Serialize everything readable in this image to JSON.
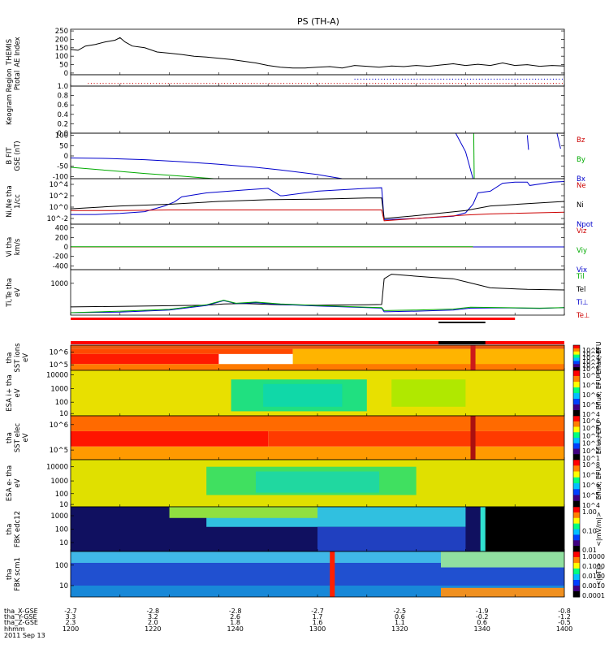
{
  "title": "PS (TH-A)",
  "footer": {
    "row_labels": [
      "tha_X-GSE",
      "tha_Y-GSE",
      "tha_Z-GSE",
      "hhmm",
      "2011 Sep 13"
    ],
    "columns": [
      [
        "-2.7",
        "3.3",
        "2.3",
        "1200"
      ],
      [
        "-2.8",
        "3.2",
        "2.0",
        "1220"
      ],
      [
        "-2.8",
        "2.6",
        "1.8",
        "1240"
      ],
      [
        "-2.7",
        "1.7",
        "1.6",
        "1300"
      ],
      [
        "-2.5",
        "0.6",
        "1.1",
        "1320"
      ],
      [
        "-1.9",
        "-0.2",
        "0.6",
        "1340"
      ],
      [
        "-0.8",
        "-1.2",
        "-0.5",
        "1400"
      ]
    ]
  },
  "chart_data": [
    {
      "type": "line",
      "id": "ae",
      "ylabel": [
        "THEMIS",
        "AE Index"
      ],
      "yticks": [
        "250",
        "200",
        "150",
        "100",
        "50",
        "0"
      ],
      "ylim": [
        -10,
        260
      ],
      "series": [
        {
          "color": "#000000",
          "x": [
            1200,
            1203,
            1206,
            1210,
            1214,
            1218,
            1220,
            1222,
            1225,
            1230,
            1235,
            1240,
            1245,
            1250,
            1255,
            1260,
            1265,
            1270,
            1275,
            1280,
            1285,
            1290,
            1295,
            1300,
            1305,
            1310,
            1315,
            1320,
            1325,
            1330,
            1335,
            1340,
            1345,
            1350,
            1355,
            1360,
            1365,
            1370,
            1375,
            1380,
            1385,
            1390,
            1395,
            1400
          ],
          "y": [
            140,
            135,
            160,
            170,
            185,
            195,
            210,
            185,
            160,
            150,
            125,
            118,
            110,
            100,
            95,
            88,
            80,
            70,
            60,
            45,
            35,
            30,
            30,
            35,
            38,
            30,
            45,
            40,
            35,
            42,
            38,
            45,
            40,
            48,
            55,
            45,
            52,
            45,
            60,
            45,
            50,
            40,
            45,
            42
          ]
        }
      ]
    },
    {
      "type": "scatter",
      "id": "region",
      "ylabel": [
        "Region",
        "Ptotal"
      ],
      "marks": [
        {
          "x0": 1207,
          "x1": 1400,
          "y": 0.72,
          "color": "#cc0000",
          "step": 1.2
        },
        {
          "x0": 1315,
          "x1": 1400,
          "y": 0.35,
          "color": "#0000cc",
          "step": 1.2
        }
      ]
    },
    {
      "type": "line",
      "id": "keogram",
      "ylabel": [
        "Keogram"
      ],
      "yticks": [
        "1.0",
        "0.8",
        "0.6",
        "0.4",
        "0.2",
        "0.0"
      ],
      "ylim": [
        0,
        1
      ]
    },
    {
      "type": "line",
      "id": "bfit",
      "ylabel": [
        "B FIT",
        "GSE (nT)"
      ],
      "yticks": [
        "100",
        "50",
        "0",
        "-50",
        "-100"
      ],
      "ylim": [
        -110,
        110
      ],
      "legend": [
        {
          "name": "Bz",
          "color": "#cc0000"
        },
        {
          "name": "By",
          "color": "#00aa00"
        },
        {
          "name": "Bx",
          "color": "#0000cc"
        }
      ],
      "series": [
        {
          "name": "Bx",
          "color": "#0000cc",
          "x": [
            1200,
            1215,
            1230,
            1245,
            1260,
            1275,
            1285,
            1300,
            1305,
            1310
          ],
          "y": [
            -10,
            -12,
            -18,
            -28,
            -40,
            -55,
            -68,
            -90,
            -100,
            -110
          ]
        },
        {
          "name": "By",
          "color": "#00aa00",
          "x": [
            1200,
            1215,
            1230,
            1245,
            1258
          ],
          "y": [
            -55,
            -70,
            -85,
            -98,
            -110
          ]
        },
        {
          "name": "Bx2",
          "color": "#0000cc",
          "x": [
            1356,
            1360,
            1363
          ],
          "y": [
            110,
            20,
            -110
          ]
        },
        {
          "name": "By2",
          "color": "#00aa00",
          "x": [
            1363.3,
            1363.5
          ],
          "y": [
            110,
            -110
          ]
        },
        {
          "name": "Bx3",
          "color": "#0000cc",
          "x": [
            1385,
            1385.5
          ],
          "y": [
            100,
            30
          ]
        },
        {
          "name": "Bx4",
          "color": "#0000cc",
          "x": [
            1397,
            1398.5
          ],
          "y": [
            110,
            35
          ]
        }
      ]
    },
    {
      "type": "line",
      "id": "ni",
      "log": true,
      "ylabel": [
        "Ni,Ne tha",
        "1/cc"
      ],
      "yticks": [
        "10^4",
        "10^2",
        "10^0",
        "10^-2"
      ],
      "ytick_vals": [
        4,
        2,
        0,
        -2
      ],
      "ylim": [
        -3,
        5
      ],
      "legend": [
        {
          "name": "Ne",
          "color": "#cc0000"
        },
        {
          "name": "Ni",
          "color": "#000000"
        },
        {
          "name": "Npot",
          "color": "#0000cc"
        }
      ],
      "series": [
        {
          "name": "Npot",
          "color": "#0000cc",
          "x": [
            1200,
            1210,
            1220,
            1230,
            1238,
            1242,
            1245,
            1255,
            1270,
            1280,
            1285,
            1286,
            1300,
            1320,
            1326,
            1327,
            1340,
            1355,
            1360,
            1363,
            1365,
            1370,
            1375,
            1380,
            1385,
            1386,
            1395,
            1400
          ],
          "y": [
            -1.3,
            -1.3,
            -1.1,
            -0.8,
            0.2,
            0.9,
            1.8,
            2.5,
            3.0,
            3.3,
            2.0,
            2.0,
            2.8,
            3.3,
            3.4,
            -2.2,
            -2.0,
            -1.6,
            -1.0,
            0.5,
            2.5,
            2.8,
            4.2,
            4.4,
            4.4,
            3.8,
            4.4,
            4.5
          ]
        },
        {
          "name": "Ni",
          "color": "#000000",
          "x": [
            1200,
            1220,
            1240,
            1260,
            1280,
            1300,
            1320,
            1326,
            1327,
            1340,
            1360,
            1370,
            1400
          ],
          "y": [
            -0.3,
            0.2,
            0.5,
            1.0,
            1.3,
            1.4,
            1.6,
            1.6,
            -2.0,
            -1.5,
            -0.6,
            0.2,
            1.0
          ]
        },
        {
          "name": "Ne",
          "color": "#cc0000",
          "x": [
            1200,
            1220,
            1240,
            1260,
            1280,
            1300,
            1320,
            1326,
            1327,
            1340,
            1360,
            1370,
            1400
          ],
          "y": [
            -0.6,
            -0.6,
            -0.5,
            -0.5,
            -0.5,
            -0.5,
            -0.5,
            -0.5,
            -2.4,
            -2.0,
            -1.4,
            -1.2,
            -0.9
          ]
        }
      ]
    },
    {
      "type": "line",
      "id": "vi",
      "ylabel": [
        "Vi tha",
        "km/s"
      ],
      "yticks": [
        "400",
        "200",
        "0",
        "-200",
        "-400"
      ],
      "ylim": [
        -480,
        480
      ],
      "legend": [
        {
          "name": "Viz",
          "color": "#cc0000"
        },
        {
          "name": "Viy",
          "color": "#00aa00"
        },
        {
          "name": "Vix",
          "color": "#0000cc"
        }
      ],
      "series": [
        {
          "name": "Vix",
          "color": "#0000cc",
          "x": [
            1200,
            1400
          ],
          "y": [
            0,
            0
          ]
        },
        {
          "name": "Viz",
          "color": "#cc0000",
          "x": [
            1200,
            1363
          ],
          "y": [
            0,
            0
          ]
        },
        {
          "name": "Viy",
          "color": "#00aa00",
          "x": [
            1200,
            1363
          ],
          "y": [
            3,
            3
          ]
        }
      ]
    },
    {
      "type": "line",
      "id": "ti",
      "ylabel": [
        "Ti,Te tha",
        "eV"
      ],
      "yticks": [
        "1000"
      ],
      "ytick_vals": [
        1000
      ],
      "ylim": [
        -50,
        1450
      ],
      "legend": [
        {
          "name": "Til",
          "color": "#00aa00"
        },
        {
          "name": "Tel",
          "color": "#000000"
        },
        {
          "name": "Ti⊥",
          "color": "#0000cc"
        },
        {
          "name": "Te⊥",
          "color": "#cc0000"
        }
      ],
      "series": [
        {
          "name": "Tel",
          "color": "#000000",
          "x": [
            1200,
            1220,
            1240,
            1255,
            1262,
            1270,
            1285,
            1300,
            1320,
            1326,
            1327,
            1330,
            1345,
            1355,
            1360,
            1370,
            1385,
            1400
          ],
          "y": [
            220,
            240,
            260,
            280,
            320,
            330,
            290,
            280,
            290,
            300,
            1150,
            1300,
            1200,
            1150,
            1050,
            850,
            800,
            780
          ]
        },
        {
          "name": "Ti⊥",
          "color": "#0000cc",
          "x": [
            1200,
            1220,
            1240,
            1255,
            1262,
            1267,
            1275,
            1285,
            1300,
            1320,
            1326,
            1327,
            1340,
            1355,
            1362,
            1375,
            1390,
            1400
          ],
          "y": [
            30,
            50,
            120,
            270,
            430,
            330,
            360,
            300,
            250,
            200,
            180,
            60,
            80,
            120,
            180,
            190,
            170,
            200
          ]
        },
        {
          "name": "Til",
          "color": "#00aa00",
          "x": [
            1200,
            1220,
            1240,
            1255,
            1262,
            1267,
            1275,
            1285,
            1300,
            1320,
            1326,
            1327,
            1340,
            1355,
            1362,
            1375,
            1390,
            1400
          ],
          "y": [
            30,
            80,
            140,
            290,
            440,
            340,
            380,
            320,
            270,
            210,
            200,
            100,
            120,
            150,
            210,
            200,
            180,
            200
          ]
        }
      ]
    },
    {
      "type": "heatmap",
      "id": "sst_ions",
      "log": true,
      "ylabel": [
        "tha",
        "SST ions",
        "eV"
      ],
      "yticks": [
        "10^6",
        "10^5"
      ],
      "ytick_frac": [
        0.28,
        0.78
      ],
      "colorbar": {
        "ticks": [
          "10^6",
          "10^5",
          "10^4",
          "10^3",
          "10^2",
          "10^1"
        ],
        "label": "Eflux, EFU"
      },
      "bands": [
        {
          "y0": 0.0,
          "y1": 0.15,
          "x0": 1200,
          "x1": 1400,
          "color": "#e85a10"
        },
        {
          "y0": 0.15,
          "y1": 0.35,
          "x0": 1200,
          "x1": 1290,
          "color": "#ff4a00"
        },
        {
          "y0": 0.35,
          "y1": 0.75,
          "x0": 1200,
          "x1": 1260,
          "color": "#ff1a00"
        },
        {
          "y0": 0.15,
          "y1": 0.85,
          "x0": 1290,
          "x1": 1400,
          "color": "#ffb400"
        },
        {
          "y0": 0.75,
          "y1": 1.0,
          "x0": 1200,
          "x1": 1400,
          "color": "#ff7a00"
        }
      ],
      "stripe": {
        "x0": 1362,
        "x1": 1364,
        "color": "#cc1a1a"
      }
    },
    {
      "type": "heatmap",
      "id": "esa_ions",
      "log": true,
      "ylabel": [
        "ESA i+ tha",
        "eV"
      ],
      "yticks": [
        "10000",
        "1000",
        "100",
        "10"
      ],
      "ytick_frac": [
        0.1,
        0.4,
        0.7,
        0.95
      ],
      "colorbar": {
        "ticks": [
          "10^8",
          "10^7",
          "10^6",
          "10^5",
          "10^4"
        ],
        "label": "Eflux, EFU"
      },
      "bands": [
        {
          "y0": 0.0,
          "y1": 1.0,
          "x0": 1200,
          "x1": 1400,
          "color": "#e8e000"
        },
        {
          "y0": 0.2,
          "y1": 0.9,
          "x0": 1265,
          "x1": 1320,
          "color": "#20e080"
        },
        {
          "y0": 0.3,
          "y1": 0.8,
          "x0": 1278,
          "x1": 1310,
          "color": "#10d8a8"
        },
        {
          "y0": 0.2,
          "y1": 0.8,
          "x0": 1330,
          "x1": 1360,
          "color": "#b0e800"
        }
      ]
    },
    {
      "type": "heatmap",
      "id": "sst_elec",
      "log": true,
      "ylabel": [
        "tha",
        "SST elec",
        "eV"
      ],
      "yticks": [
        "10^6",
        "10^5"
      ],
      "ytick_frac": [
        0.2,
        0.78
      ],
      "colorbar": {
        "ticks": [
          "10^6",
          "10^5",
          "10^4",
          "10^3",
          "10^2",
          "10^1"
        ],
        "label": "Eflux, EFU"
      },
      "bands": [
        {
          "y0": 0.0,
          "y1": 0.35,
          "x0": 1200,
          "x1": 1400,
          "color": "#ff6a00"
        },
        {
          "y0": 0.35,
          "y1": 0.7,
          "x0": 1200,
          "x1": 1280,
          "color": "#ff1500"
        },
        {
          "y0": 0.35,
          "y1": 0.7,
          "x0": 1280,
          "x1": 1400,
          "color": "#ff3a00"
        },
        {
          "y0": 0.7,
          "y1": 1.0,
          "x0": 1200,
          "x1": 1400,
          "color": "#ff9a00"
        }
      ],
      "stripe": {
        "x0": 1362,
        "x1": 1364,
        "color": "#aa1010"
      }
    },
    {
      "type": "heatmap",
      "id": "esa_elec",
      "log": true,
      "ylabel": [
        "ESA e- tha",
        "eV"
      ],
      "yticks": [
        "10000",
        "1000",
        "100",
        "10"
      ],
      "ytick_frac": [
        0.15,
        0.45,
        0.72,
        0.95
      ],
      "colorbar": {
        "ticks": [
          "10^8",
          "10^7",
          "10^6",
          "10^5",
          "10^4"
        ],
        "label": "Eflux, EFU"
      },
      "bands": [
        {
          "y0": 0.0,
          "y1": 1.0,
          "x0": 1200,
          "x1": 1400,
          "color": "#e0e000"
        },
        {
          "y0": 0.15,
          "y1": 0.75,
          "x0": 1255,
          "x1": 1340,
          "color": "#40e060"
        },
        {
          "y0": 0.25,
          "y1": 0.7,
          "x0": 1275,
          "x1": 1325,
          "color": "#20d8a0"
        }
      ]
    },
    {
      "type": "heatmap",
      "id": "fbk_edc12",
      "log": true,
      "ylabel": [
        "tha",
        "FBK edc12"
      ],
      "yticks": [
        "1000",
        "100",
        "10"
      ],
      "ytick_frac": [
        0.2,
        0.5,
        0.8
      ],
      "colorbar": {
        "ticks": [
          "1.00",
          "0.10",
          "0.01"
        ],
        "label": "<|mV/m|>"
      },
      "bands": [
        {
          "y0": 0.0,
          "y1": 1.0,
          "x0": 1200,
          "x1": 1400,
          "color": "#101060"
        },
        {
          "y0": 0.0,
          "y1": 0.45,
          "x0": 1255,
          "x1": 1360,
          "color": "#30c0e0"
        },
        {
          "y0": 0.0,
          "y1": 0.25,
          "x0": 1240,
          "x1": 1300,
          "color": "#90e040"
        },
        {
          "y0": 0.45,
          "y1": 1.0,
          "x0": 1300,
          "x1": 1360,
          "color": "#2040c0"
        },
        {
          "y0": 0.0,
          "y1": 1.0,
          "x0": 1366,
          "x1": 1400,
          "color": "#000000"
        }
      ],
      "stripe": {
        "x0": 1366,
        "x1": 1368,
        "color": "#30e0d0"
      }
    },
    {
      "type": "heatmap",
      "id": "fbk_scm1",
      "log": true,
      "ylabel": [
        "tha",
        "FBK scm1"
      ],
      "yticks": [
        "100",
        "10"
      ],
      "ytick_frac": [
        0.3,
        0.75
      ],
      "colorbar": {
        "ticks": [
          "1.0000",
          "0.1000",
          "0.0100",
          "0.0010",
          "0.0001"
        ],
        "label": "<|nT|>"
      },
      "bands": [
        {
          "y0": 0.0,
          "y1": 0.25,
          "x0": 1200,
          "x1": 1400,
          "color": "#40b8e8"
        },
        {
          "y0": 0.25,
          "y1": 0.75,
          "x0": 1200,
          "x1": 1400,
          "color": "#2050d0"
        },
        {
          "y0": 0.75,
          "y1": 1.0,
          "x0": 1200,
          "x1": 1400,
          "color": "#1888d8"
        },
        {
          "y0": 0.0,
          "y1": 0.35,
          "x0": 1350,
          "x1": 1400,
          "color": "#90e0a0"
        },
        {
          "y0": 0.8,
          "y1": 1.0,
          "x0": 1350,
          "x1": 1400,
          "color": "#f09020"
        }
      ],
      "stripe": {
        "x0": 1305,
        "x1": 1307,
        "color": "#ff2000"
      }
    }
  ]
}
